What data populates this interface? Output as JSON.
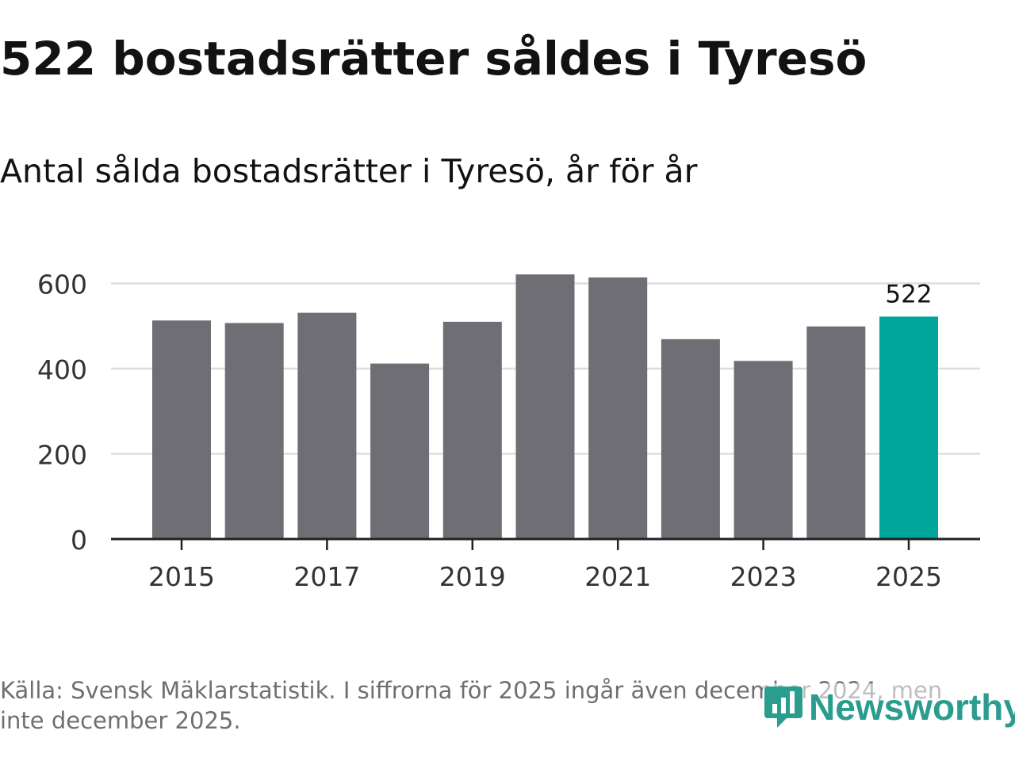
{
  "colors": {
    "bar": "#6f6e74",
    "highlight": "#00a59c",
    "grid": "#dddddd",
    "axis": "#222222",
    "text": "#121212",
    "footer": "#6f6e73",
    "logo": "#2a9d8f"
  },
  "footer": {
    "source_text": "Källa: Svensk Mäklarstatistik. I siffrorna för 2025 ingår även december 2024, men inte december 2025."
  },
  "logo": {
    "text": "Newsworthy",
    "icon": "chat-bar-chart-icon"
  },
  "chart_data": {
    "type": "bar",
    "title": "522 bostadsrätter såldes i Tyresö",
    "subtitle": "Antal sålda bostadsrätter i Tyresö, år för år",
    "xlabel": "",
    "ylabel": "",
    "categories": [
      "2015",
      "2016",
      "2017",
      "2018",
      "2019",
      "2020",
      "2021",
      "2022",
      "2023",
      "2024",
      "2025"
    ],
    "values": [
      513,
      507,
      531,
      412,
      510,
      621,
      614,
      469,
      418,
      499,
      522
    ],
    "xtick_labels": [
      "2015",
      "2017",
      "2019",
      "2021",
      "2023",
      "2025"
    ],
    "yticks": [
      0,
      200,
      400,
      600
    ],
    "ylim": [
      0,
      600
    ],
    "grid": true,
    "highlight_category": "2025",
    "data_labels": [
      {
        "category": "2025",
        "text": "522"
      }
    ]
  }
}
